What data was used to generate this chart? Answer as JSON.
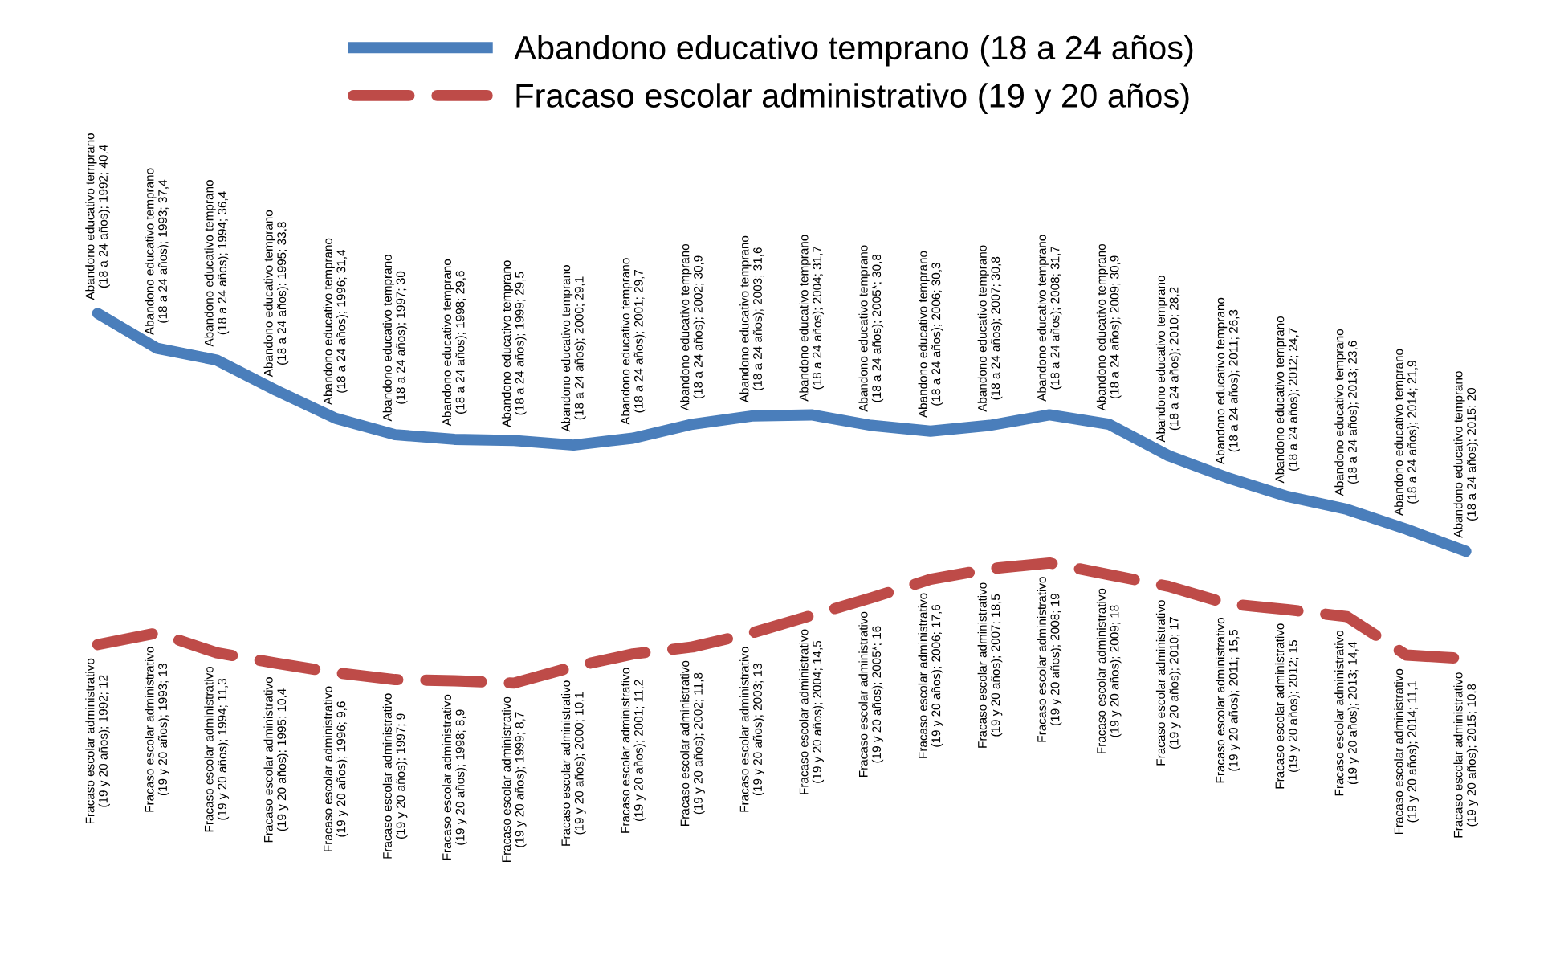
{
  "chart_data": {
    "type": "line",
    "categories": [
      null,
      null,
      null,
      null,
      null,
      null,
      null,
      null,
      null,
      null,
      null,
      null,
      null,
      null,
      null,
      null,
      null,
      null,
      null,
      null,
      null,
      null,
      null,
      null
    ],
    "grid": false,
    "legend": "top",
    "marker": "none",
    "series": [
      {
        "name": "Abandono educativo temprano (18 a 24 años)",
        "color": "#4a7ebb",
        "line_style": "solid",
        "values": [
          40.4,
          37.4,
          36.4,
          33.8,
          31.4,
          30,
          29.6,
          29.5,
          29.1,
          29.7,
          30.9,
          31.6,
          31.7,
          30.8,
          30.3,
          30.8,
          31.7,
          30.9,
          28.2,
          26.3,
          24.7,
          23.6,
          21.9,
          20
        ],
        "value_labels": [
          "Abandono educativo temprano (18 a 24 años); 1992; 40,4",
          "Abandono educativo temprano (18 a 24 años); 1993; 37,4",
          "Abandono educativo temprano (18 a 24 años); 1994; 36,4",
          "Abandono educativo temprano (18 a 24 años); 1995; 33,8",
          "Abandono educativo temprano (18 a 24 años); 1996; 31,4",
          "Abandono educativo temprano (18 a 24 años); 1997; 30",
          "Abandono educativo temprano (18 a 24 años); 1998; 29,6",
          "Abandono educativo temprano (18 a 24 años); 1999; 29,5",
          "Abandono educativo temprano (18 a 24 años); 2000; 29,1",
          "Abandono educativo temprano (18 a 24 años); 2001; 29,7",
          "Abandono educativo temprano (18 a 24 años); 2002; 30,9",
          "Abandono educativo temprano (18 a 24 años); 2003; 31,6",
          "Abandono educativo temprano (18 a 24 años); 2004; 31,7",
          "Abandono educativo temprano (18 a 24 años); 2005*; 30,8",
          "Abandono educativo temprano (18 a 24 años); 2006; 30,3",
          "Abandono educativo temprano (18 a 24 años); 2007; 30,8",
          "Abandono educativo temprano (18 a 24 años); 2008; 31,7",
          "Abandono educativo temprano (18 a 24 años); 2009; 30,9",
          "Abandono educativo temprano (18 a 24 años); 2010; 28,2",
          "Abandono educativo temprano (18 a 24 años); 2011; 26,3",
          "Abandono educativo temprano (18 a 24 años); 2012; 24,7",
          "Abandono educativo temprano (18 a 24 años); 2013; 23,6",
          "Abandono educativo temprano (18 a 24 años); 2014; 21,9",
          "Abandono educativo temprano (18 a 24 años); 2015; 20"
        ]
      },
      {
        "name": "Fracaso escolar administrativo (19 y 20 años)",
        "color": "#be4b48",
        "line_style": "dashed",
        "values": [
          12,
          13,
          11.3,
          10.4,
          9.6,
          9,
          8.9,
          8.7,
          10.1,
          11.2,
          11.8,
          13,
          14.5,
          16,
          17.6,
          18.5,
          19,
          18,
          17,
          15.5,
          15,
          14.4,
          11.1,
          10.8
        ],
        "value_labels": [
          "Fracaso escolar administrativo (19 y 20 años); 1992; 12",
          "Fracaso escolar administrativo (19 y 20 años); 1993; 13",
          "Fracaso escolar administrativo (19 y 20 años); 1994; 11,3",
          "Fracaso escolar administrativo (19 y 20 años); 1995; 10,4",
          "Fracaso escolar administrativo (19 y 20 años); 1996; 9,6",
          "Fracaso escolar administrativo (19 y 20 años); 1997; 9",
          "Fracaso escolar administrativo (19 y 20 años); 1998; 8,9",
          "Fracaso escolar administrativo (19 y 20 años); 1999; 8,7",
          "Fracaso escolar administrativo (19 y 20 años); 2000; 10,1",
          "Fracaso escolar administrativo (19 y 20 años); 2001; 11,2",
          "Fracaso escolar administrativo (19 y 20 años); 2002; 11,8",
          "Fracaso escolar administrativo (19 y 20 años); 2003; 13",
          "Fracaso escolar administrativo (19 y 20 años); 2004; 14,5",
          "Fracaso escolar administrativo (19 y 20 años); 2005*; 16",
          "Fracaso escolar administrativo (19 y 20 años); 2006; 17,6",
          "Fracaso escolar administrativo (19 y 20 años); 2007; 18,5",
          "Fracaso escolar administrativo (19 y 20 años); 2008; 19",
          "Fracaso escolar administrativo (19 y 20 años); 2009; 18",
          "Fracaso escolar administrativo (19 y 20 años); 2010; 17",
          "Fracaso escolar administrativo (19 y 20 años); 2011; 15,5",
          "Fracaso escolar administrativo (19 y 20 años); 2012; 15",
          "Fracaso escolar administrativo (19 y 20 años); 2013; 14,4",
          "Fracaso escolar administrativo (19 y 20 años); 2014; 11,1",
          "Fracaso escolar administrativo (19 y 20 años); 2015; 10,8"
        ]
      }
    ]
  }
}
